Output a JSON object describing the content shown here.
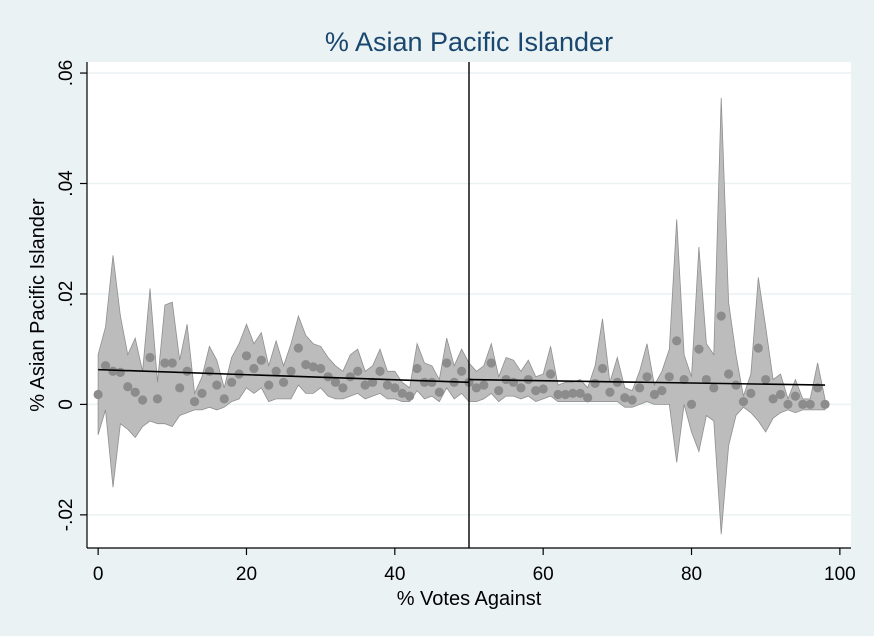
{
  "chart_data": {
    "type": "scatter",
    "title": "% Asian Pacific Islander",
    "xlabel": "% Votes Against",
    "ylabel": "% Asian Pacific Islander",
    "xlim": [
      -1.5,
      101.5
    ],
    "ylim": [
      -0.026,
      0.062
    ],
    "x_ticks": [
      0,
      20,
      40,
      60,
      80,
      100
    ],
    "x_tick_labels": [
      "0",
      "20",
      "40",
      "60",
      "80",
      "100"
    ],
    "y_ticks": [
      -0.02,
      0,
      0.02,
      0.04,
      0.06
    ],
    "y_tick_labels": [
      "-.02",
      "0",
      ".02",
      ".04",
      ".06"
    ],
    "grid": true,
    "legend": "none",
    "threshold_x": 50,
    "fit_line": {
      "left": {
        "x": [
          0,
          50
        ],
        "y": [
          0.0063,
          0.004
        ]
      },
      "right": {
        "x": [
          50,
          98
        ],
        "y": [
          0.0045,
          0.0035
        ]
      }
    },
    "points": {
      "x": [
        0,
        1,
        2,
        3,
        4,
        5,
        6,
        7,
        8,
        9,
        10,
        11,
        12,
        13,
        14,
        15,
        16,
        17,
        18,
        19,
        20,
        21,
        22,
        23,
        24,
        25,
        26,
        27,
        28,
        29,
        30,
        31,
        32,
        33,
        34,
        35,
        36,
        37,
        38,
        39,
        40,
        41,
        42,
        43,
        44,
        45,
        46,
        47,
        48,
        49,
        50,
        51,
        52,
        53,
        54,
        55,
        56,
        57,
        58,
        59,
        60,
        61,
        62,
        63,
        64,
        65,
        66,
        67,
        68,
        69,
        70,
        71,
        72,
        73,
        74,
        75,
        76,
        77,
        78,
        79,
        80,
        81,
        82,
        83,
        84,
        85,
        86,
        87,
        88,
        89,
        90,
        91,
        92,
        93,
        94,
        95,
        96,
        97,
        98
      ],
      "y": [
        0.0018,
        0.007,
        0.006,
        0.0058,
        0.0032,
        0.0022,
        0.0008,
        0.0085,
        0.001,
        0.0075,
        0.0075,
        0.003,
        0.006,
        0.0005,
        0.002,
        0.006,
        0.0035,
        0.001,
        0.004,
        0.0055,
        0.0088,
        0.0065,
        0.008,
        0.0035,
        0.006,
        0.004,
        0.006,
        0.0102,
        0.0072,
        0.0068,
        0.0065,
        0.005,
        0.004,
        0.003,
        0.005,
        0.006,
        0.0035,
        0.004,
        0.006,
        0.0035,
        0.003,
        0.002,
        0.0015,
        0.0065,
        0.004,
        0.004,
        0.0022,
        0.0075,
        0.004,
        0.006,
        0.004,
        0.003,
        0.0035,
        0.0075,
        0.0025,
        0.0045,
        0.004,
        0.003,
        0.0045,
        0.0025,
        0.0028,
        0.0055,
        0.0018,
        0.0018,
        0.002,
        0.002,
        0.0012,
        0.0038,
        0.0065,
        0.0022,
        0.004,
        0.0012,
        0.0008,
        0.003,
        0.005,
        0.0018,
        0.0025,
        0.005,
        0.0115,
        0.0045,
        0.0,
        0.01,
        0.0045,
        0.003,
        0.016,
        0.0055,
        0.0035,
        0.0005,
        0.002,
        0.0102,
        0.0045,
        0.001,
        0.0018,
        0.0,
        0.0015,
        0.0,
        0.0,
        0.003,
        0.0
      ],
      "lo": [
        -0.0055,
        -0.001,
        -0.015,
        -0.0035,
        -0.0045,
        -0.006,
        -0.004,
        -0.003,
        -0.0035,
        -0.0035,
        -0.004,
        -0.002,
        -0.0015,
        -0.001,
        -0.001,
        -0.0005,
        -0.001,
        -0.0005,
        0.0005,
        0.001,
        0.003,
        0.002,
        0.003,
        0.0005,
        0.001,
        0.001,
        0.001,
        0.0035,
        0.002,
        0.002,
        0.003,
        0.0015,
        0.001,
        0.001,
        0.0015,
        0.002,
        0.001,
        0.0015,
        0.002,
        0.001,
        0.001,
        0.0005,
        0.0005,
        0.0025,
        0.001,
        0.0015,
        0.0005,
        0.003,
        0.001,
        0.002,
        0.0005,
        0.0005,
        0.001,
        0.002,
        0.0005,
        0.0015,
        0.0015,
        0.001,
        0.0015,
        0.0005,
        0.001,
        0.0015,
        0.0005,
        0.0005,
        0.0005,
        0.0005,
        0.0005,
        0.0005,
        0.0005,
        0.0005,
        0.0005,
        -0.0005,
        -0.0005,
        0.0,
        0.0005,
        0.0,
        0.0,
        0.0,
        -0.0105,
        0.0,
        -0.005,
        -0.0085,
        -0.002,
        -0.003,
        -0.0235,
        -0.0075,
        -0.002,
        -0.0005,
        -0.0015,
        -0.003,
        -0.005,
        -0.0025,
        -0.0015,
        -0.001,
        -0.0015,
        -0.001,
        -0.001,
        -0.001,
        -0.001
      ],
      "hi": [
        0.009,
        0.014,
        0.027,
        0.016,
        0.009,
        0.012,
        0.006,
        0.021,
        0.004,
        0.018,
        0.0185,
        0.008,
        0.0145,
        0.002,
        0.005,
        0.0105,
        0.008,
        0.003,
        0.0085,
        0.011,
        0.0145,
        0.011,
        0.013,
        0.007,
        0.0115,
        0.007,
        0.011,
        0.016,
        0.0125,
        0.011,
        0.0105,
        0.0085,
        0.007,
        0.006,
        0.009,
        0.01,
        0.006,
        0.007,
        0.01,
        0.006,
        0.006,
        0.004,
        0.003,
        0.011,
        0.0075,
        0.007,
        0.0045,
        0.012,
        0.007,
        0.01,
        0.0075,
        0.006,
        0.007,
        0.011,
        0.005,
        0.0085,
        0.008,
        0.006,
        0.008,
        0.005,
        0.0055,
        0.0105,
        0.0035,
        0.004,
        0.004,
        0.0045,
        0.003,
        0.007,
        0.0155,
        0.004,
        0.0085,
        0.003,
        0.0025,
        0.006,
        0.011,
        0.0035,
        0.006,
        0.01,
        0.0335,
        0.009,
        0.005,
        0.0285,
        0.011,
        0.009,
        0.0555,
        0.0185,
        0.009,
        0.0015,
        0.0055,
        0.023,
        0.014,
        0.0045,
        0.0055,
        0.001,
        0.0045,
        0.001,
        0.001,
        0.0075,
        0.001
      ]
    }
  }
}
